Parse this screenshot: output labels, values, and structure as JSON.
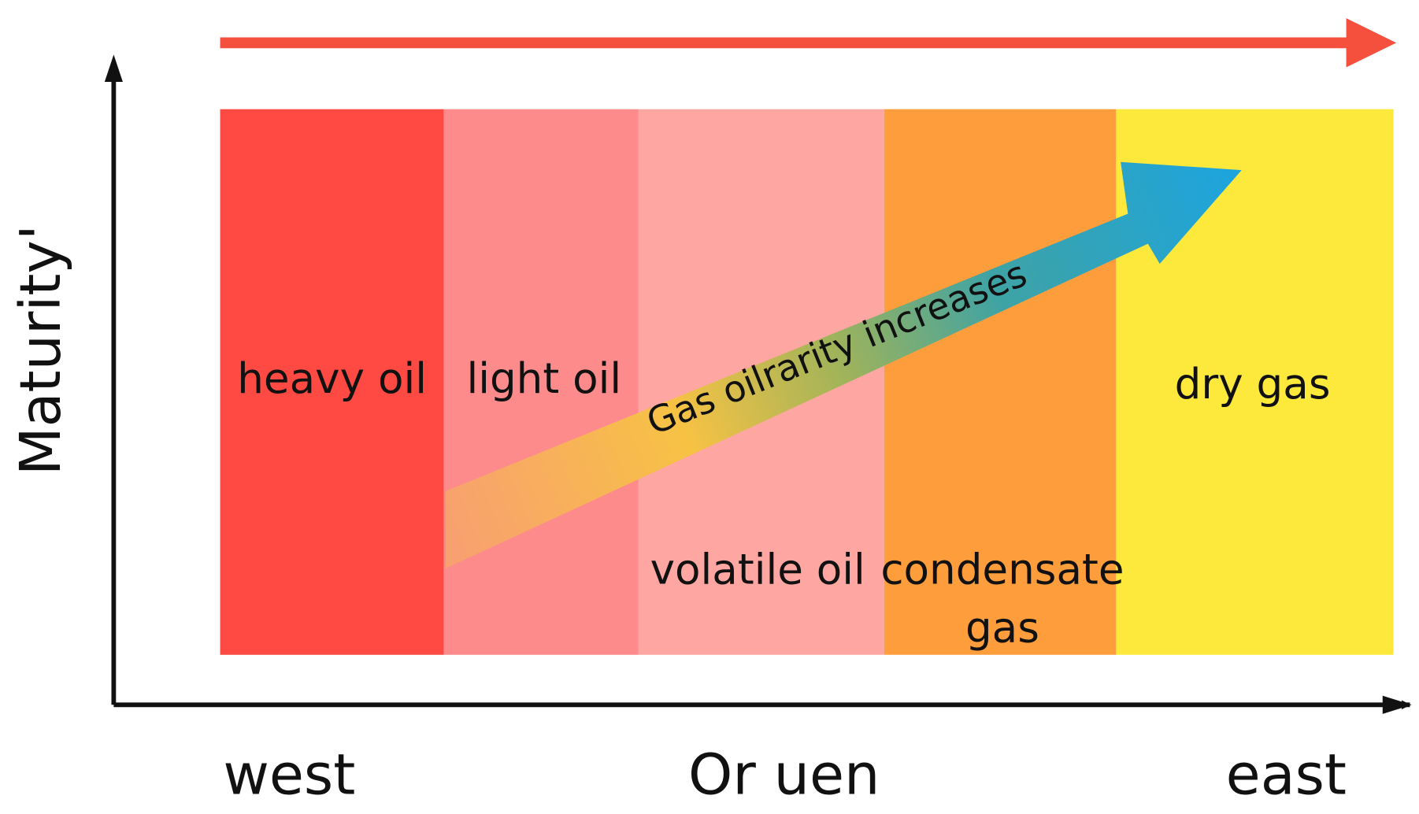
{
  "y_axis_label": "Maturity'",
  "x_axis_labels": {
    "left": "west",
    "center": "Or uen",
    "right": "east"
  },
  "zones": [
    {
      "label": "heavy oil"
    },
    {
      "label": "light oil"
    },
    {
      "label": "volatile oil"
    },
    {
      "label_lines": [
        "condensate",
        "gas"
      ]
    },
    {
      "label": "dry gas"
    }
  ],
  "arrow_label": "Gas oilrarity increases"
}
